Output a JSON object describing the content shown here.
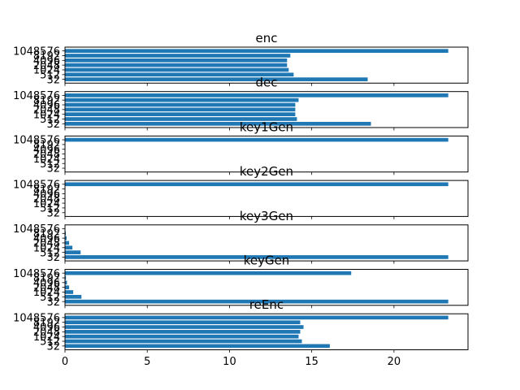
{
  "chart_data": [
    {
      "type": "bar",
      "orientation": "horizontal",
      "title": "enc",
      "categories": [
        "32",
        "512",
        "1024",
        "2048",
        "4096",
        "8192",
        "1048576"
      ],
      "values": [
        18.4,
        13.9,
        13.6,
        13.5,
        13.5,
        13.7,
        23.3
      ],
      "xlim": [
        0,
        24.5
      ],
      "xticks": [
        "0",
        "5",
        "10",
        "15",
        "20"
      ],
      "show_xtick_labels": false,
      "bar_color": "#1f77b4"
    },
    {
      "type": "bar",
      "orientation": "horizontal",
      "title": "dec",
      "categories": [
        "32",
        "512",
        "1024",
        "2048",
        "4096",
        "8192",
        "1048576"
      ],
      "values": [
        18.6,
        14.1,
        14.0,
        14.0,
        14.0,
        14.2,
        23.3
      ],
      "xlim": [
        0,
        24.5
      ],
      "xticks": [
        "0",
        "5",
        "10",
        "15",
        "20"
      ],
      "show_xtick_labels": false,
      "bar_color": "#1f77b4"
    },
    {
      "type": "bar",
      "orientation": "horizontal",
      "title": "key1Gen",
      "categories": [
        "32",
        "512",
        "1024",
        "2048",
        "4096",
        "8192",
        "1048576"
      ],
      "values": [
        0.02,
        0.02,
        0.02,
        0.02,
        0.02,
        0.02,
        23.3
      ],
      "xlim": [
        0,
        24.5
      ],
      "xticks": [
        "0",
        "5",
        "10",
        "15",
        "20"
      ],
      "show_xtick_labels": false,
      "bar_color": "#1f77b4"
    },
    {
      "type": "bar",
      "orientation": "horizontal",
      "title": "key2Gen",
      "categories": [
        "32",
        "512",
        "1024",
        "2048",
        "4096",
        "8192",
        "1048576"
      ],
      "values": [
        0.02,
        0.02,
        0.02,
        0.02,
        0.02,
        0.02,
        23.3
      ],
      "xlim": [
        0,
        24.5
      ],
      "xticks": [
        "0",
        "5",
        "10",
        "15",
        "20"
      ],
      "show_xtick_labels": false,
      "bar_color": "#1f77b4"
    },
    {
      "type": "bar",
      "orientation": "horizontal",
      "title": "key3Gen",
      "categories": [
        "32",
        "512",
        "1024",
        "2048",
        "4096",
        "8192",
        "1048576"
      ],
      "values": [
        23.3,
        0.95,
        0.45,
        0.25,
        0.1,
        0.05,
        0.02
      ],
      "xlim": [
        0,
        24.5
      ],
      "xticks": [
        "0",
        "5",
        "10",
        "15",
        "20"
      ],
      "show_xtick_labels": false,
      "bar_color": "#1f77b4"
    },
    {
      "type": "bar",
      "orientation": "horizontal",
      "title": "keyGen",
      "categories": [
        "32",
        "512",
        "1024",
        "2048",
        "4096",
        "8192",
        "1048576"
      ],
      "values": [
        23.3,
        1.0,
        0.5,
        0.25,
        0.12,
        0.06,
        17.4
      ],
      "xlim": [
        0,
        24.5
      ],
      "xticks": [
        "0",
        "5",
        "10",
        "15",
        "20"
      ],
      "show_xtick_labels": false,
      "bar_color": "#1f77b4"
    },
    {
      "type": "bar",
      "orientation": "horizontal",
      "title": "reEnc",
      "categories": [
        "32",
        "512",
        "1024",
        "2048",
        "4096",
        "8192",
        "1048576"
      ],
      "values": [
        16.1,
        14.4,
        14.2,
        14.3,
        14.5,
        14.3,
        23.3
      ],
      "xlim": [
        0,
        24.5
      ],
      "xticks": [
        "0",
        "5",
        "10",
        "15",
        "20"
      ],
      "show_xtick_labels": true,
      "bar_color": "#1f77b4"
    }
  ]
}
